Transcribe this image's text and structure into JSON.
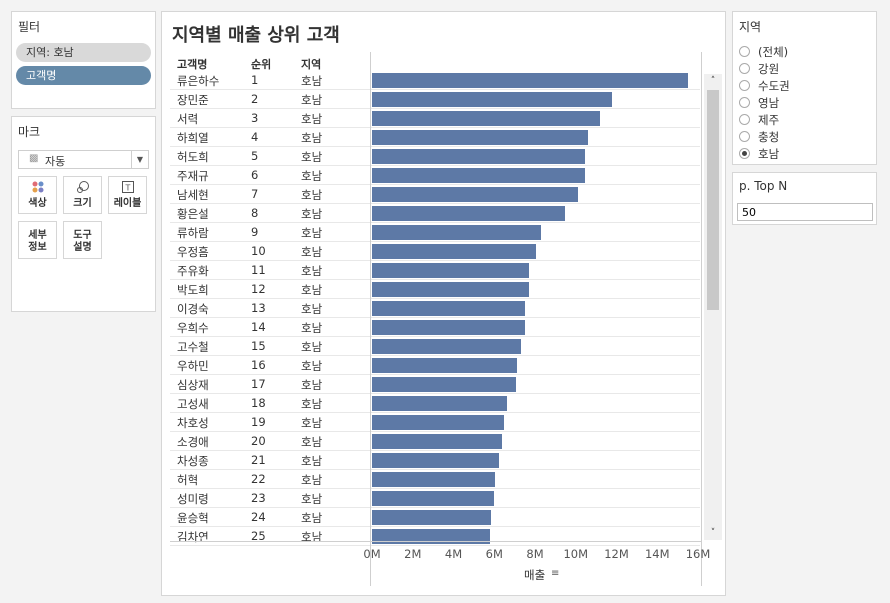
{
  "filters": {
    "title": "필터",
    "items": [
      "지역: 호남",
      "고객명"
    ]
  },
  "marks": {
    "title": "마크",
    "type_label": "자동",
    "buttons": [
      {
        "label": "색상",
        "icon": "color-icon"
      },
      {
        "label": "크기",
        "icon": "size-icon"
      },
      {
        "label": "레이블",
        "icon": "label-icon"
      },
      {
        "label": "세부\n정보",
        "icon": "detail-icon"
      },
      {
        "label": "도구\n설명",
        "icon": "tooltip-icon"
      }
    ]
  },
  "chart": {
    "title": "지역별 매출 상위 고객",
    "columns": [
      "고객명",
      "순위",
      "지역"
    ],
    "x_label": "매출",
    "bar_color": "#5d79a6"
  },
  "chart_data": {
    "type": "bar",
    "orientation": "horizontal",
    "title": "지역별 매출 상위 고객",
    "xlabel": "매출",
    "xlim": [
      0,
      16000000
    ],
    "x_ticks": [
      "0M",
      "2M",
      "4M",
      "6M",
      "8M",
      "10M",
      "12M",
      "14M",
      "16M"
    ],
    "categories": [
      "류은하수",
      "장민준",
      "서력",
      "하희열",
      "허도희",
      "주재규",
      "남세현",
      "황은설",
      "류하람",
      "우정흠",
      "주유화",
      "박도희",
      "이경숙",
      "우희수",
      "고수철",
      "우하민",
      "심상재",
      "고성새",
      "차호성",
      "소경애",
      "차성종",
      "허혁",
      "성미령",
      "윤승혁",
      "김차연"
    ],
    "ranks": [
      1,
      2,
      3,
      4,
      5,
      6,
      7,
      8,
      9,
      10,
      11,
      12,
      13,
      14,
      15,
      16,
      17,
      18,
      19,
      20,
      21,
      22,
      23,
      24,
      25
    ],
    "region": "호남",
    "values": [
      15500000,
      11800000,
      11200000,
      10600000,
      10450000,
      10450000,
      10100000,
      9450000,
      8300000,
      8050000,
      7700000,
      7700000,
      7500000,
      7500000,
      7300000,
      7100000,
      7050000,
      6650000,
      6500000,
      6400000,
      6250000,
      6050000,
      6000000,
      5850000,
      5800000
    ]
  },
  "region": {
    "title": "지역",
    "options": [
      "(전체)",
      "강원",
      "수도권",
      "영남",
      "제주",
      "충청",
      "호남"
    ],
    "selected": "호남"
  },
  "topn": {
    "title": "p. Top N",
    "value": "50"
  }
}
